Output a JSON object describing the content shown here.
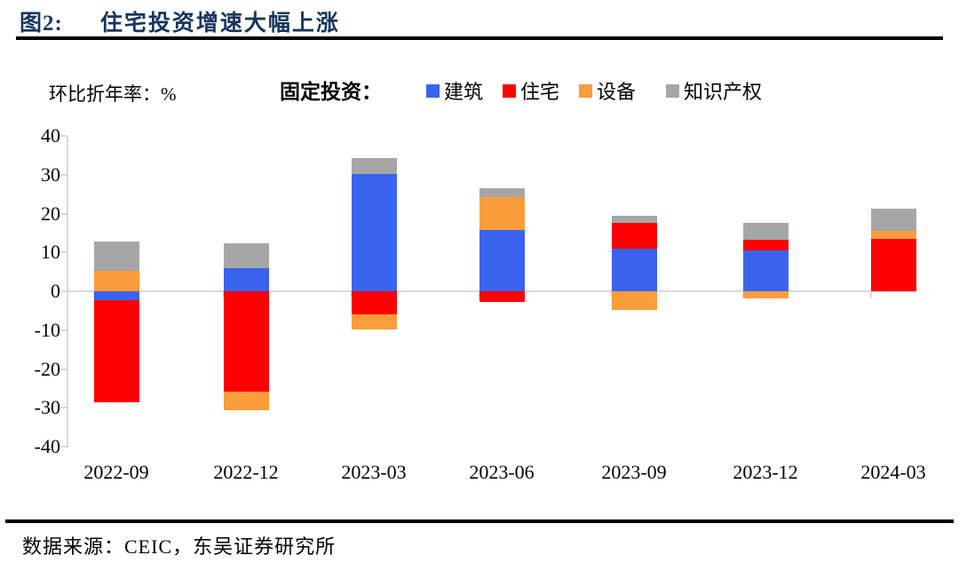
{
  "header": {
    "figure_label": "图2:",
    "figure_title": "住宅投资增速大幅上涨",
    "unit_label": "环比折年率：%",
    "legend_caption": "固定投资："
  },
  "footer": {
    "source_text": "数据来源：CEIC，东吴证券研究所"
  },
  "colors": {
    "title_navy": "#17365D",
    "axis_gray": "#D9D9D9",
    "rule_black": "#000000",
    "construction_blue": "#3B63F0",
    "residential_red": "#FE0000",
    "equipment_orange": "#FB9D3B",
    "ip_gray": "#A6A6A6"
  },
  "chart_data": {
    "type": "bar",
    "stacked": true,
    "title": "住宅投资增速大幅上涨",
    "ylabel": "环比折年率：%",
    "xlabel": "",
    "ylim": [
      -40,
      40
    ],
    "ytick_step": 10,
    "grid": "zero-line-only",
    "legend_position": "top",
    "categories": [
      "2022-09",
      "2022-12",
      "2023-03",
      "2023-06",
      "2023-09",
      "2023-12",
      "2024-03"
    ],
    "series": [
      {
        "name": "建筑",
        "color": "#3B63F0",
        "values": [
          -2.3,
          6.0,
          30.2,
          15.8,
          11.0,
          10.6,
          0
        ]
      },
      {
        "name": "住宅",
        "color": "#FE0000",
        "values": [
          -26.2,
          -25.8,
          -5.9,
          -2.7,
          6.5,
          2.7,
          13.6
        ]
      },
      {
        "name": "设备",
        "color": "#FB9D3B",
        "values": [
          5.3,
          -4.8,
          -3.9,
          8.4,
          -4.8,
          -1.8,
          2.0
        ]
      },
      {
        "name": "知识产权",
        "color": "#A6A6A6",
        "values": [
          7.5,
          6.4,
          4.1,
          2.3,
          1.9,
          4.4,
          5.7
        ]
      }
    ]
  }
}
